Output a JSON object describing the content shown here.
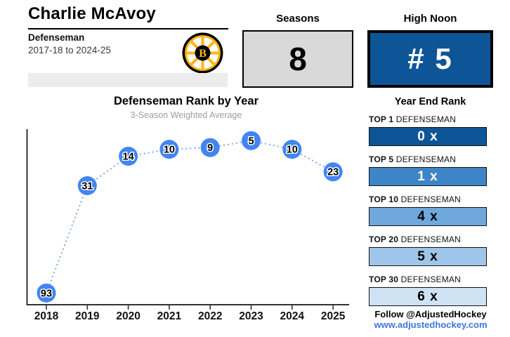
{
  "header": {
    "player_name": "Charlie McAvoy",
    "position": "Defenseman",
    "seasons_range": "2017-18 to 2024-25",
    "team": "boston-bruins",
    "logo_letter": "B"
  },
  "stats": {
    "seasons": {
      "label": "Seasons",
      "value": "8"
    },
    "high_noon": {
      "label": "High Noon",
      "value": "# 5",
      "bg_color": "#0e5597"
    }
  },
  "chart_data": {
    "type": "line",
    "title": "Defenseman Rank by Year",
    "subtitle": "3-Season Weighted Average",
    "categories": [
      "2018",
      "2019",
      "2020",
      "2021",
      "2022",
      "2023",
      "2024",
      "2025"
    ],
    "values": [
      93,
      31,
      14,
      10,
      9,
      5,
      10,
      23
    ],
    "xlabel": "",
    "ylabel": "",
    "ylim": [
      0,
      100
    ],
    "y_inverted": true,
    "grid": false,
    "legend": false,
    "line_style": "dotted",
    "marker_color": "#4285f4",
    "line_color": "#7baaf7",
    "axis_color": "#333333"
  },
  "year_end_rank": {
    "title": "Year End Rank",
    "rows": [
      {
        "label_bold": "TOP 1",
        "label_rest": "DEFENSEMAN",
        "value": "0 x",
        "bar_color": "#0e5597",
        "text_color": "#ffffff"
      },
      {
        "label_bold": "TOP 5",
        "label_rest": "DEFENSEMAN",
        "value": "1 x",
        "bar_color": "#3d85c6",
        "text_color": "#ffffff"
      },
      {
        "label_bold": "TOP 10",
        "label_rest": "DEFENSEMAN",
        "value": "4 x",
        "bar_color": "#6fa8dc",
        "text_color": "#000000"
      },
      {
        "label_bold": "TOP 20",
        "label_rest": "DEFENSEMAN",
        "value": "5 x",
        "bar_color": "#9fc5e8",
        "text_color": "#000000"
      },
      {
        "label_bold": "TOP 30",
        "label_rest": "DEFENSEMAN",
        "value": "6 x",
        "bar_color": "#cfe2f3",
        "text_color": "#000000"
      }
    ]
  },
  "footer": {
    "follow_text": "Follow @AdjustedHockey",
    "website": "www.adjustedhockey.com",
    "link_color": "#3d78d8"
  }
}
